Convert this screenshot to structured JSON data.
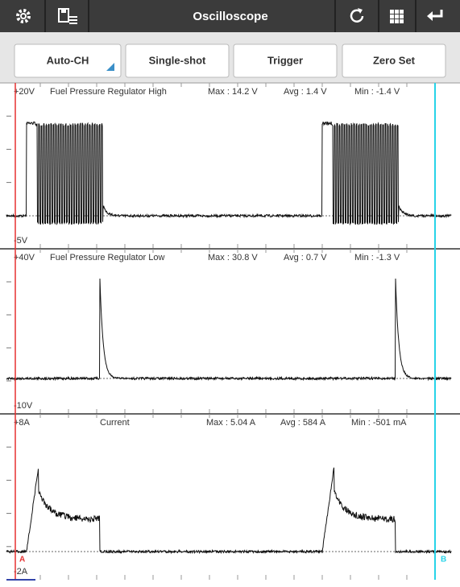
{
  "toolbar": {
    "title": "Oscilloscope"
  },
  "buttons": [
    "Auto-CH",
    "Single-shot",
    "Trigger",
    "Zero Set"
  ],
  "channels": [
    {
      "top_label": "+20V",
      "name": "Fuel Pressure Regulator High",
      "max": "Max : 14.2 V",
      "avg": "Avg : 1.4 V",
      "min": "Min : -1.4 V",
      "bottom_label": "-5V"
    },
    {
      "top_label": "+40V",
      "name": "Fuel Pressure Regulator Low",
      "max": "Max : 30.8 V",
      "avg": "Avg : 0.7 V",
      "min": "Min : -1.3 V",
      "bottom_label": "-10V"
    },
    {
      "top_label": "+8A",
      "name": "Current",
      "max": "Max : 5.04 A",
      "avg": "Avg : 584 A",
      "min": "Min : -501 mA",
      "bottom_label": "-2A"
    }
  ],
  "cursors": {
    "a": "A",
    "b": "B"
  }
}
